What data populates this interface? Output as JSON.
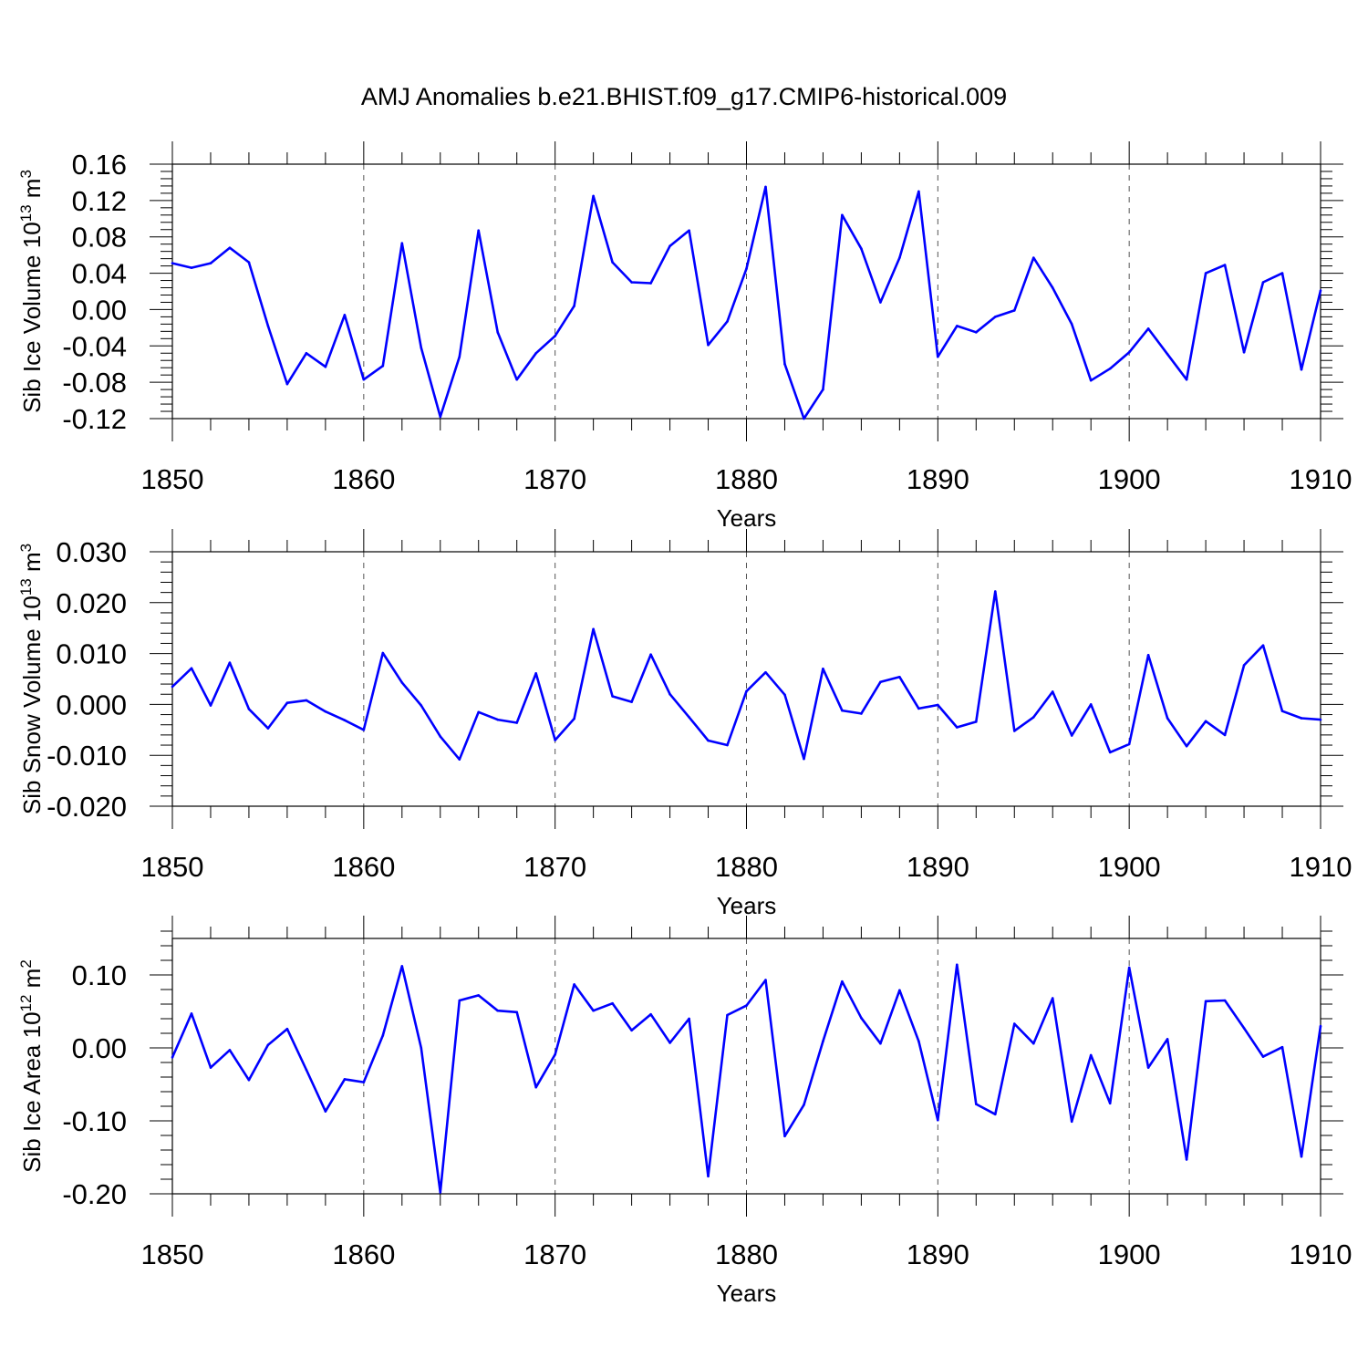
{
  "title": "AMJ Anomalies b.e21.BHIST.f09_g17.CMIP6-historical.009",
  "series_color": "#0000ff",
  "chart_data": [
    {
      "type": "line",
      "name": "ice-volume",
      "ylabel": "Sib Ice Volume 10",
      "ylabel_exp": "13",
      "ylabel_unit": " m",
      "ylabel_unit_exp": "3",
      "xlabel": "Years",
      "xlim": [
        1850,
        1910
      ],
      "ylim": [
        -0.12,
        0.16
      ],
      "yticks": [
        -0.12,
        -0.08,
        -0.04,
        0.0,
        0.04,
        0.08,
        0.12,
        0.16
      ],
      "ytick_labels": [
        "-0.12",
        "-0.08",
        "-0.04",
        "0.00",
        "0.04",
        "0.08",
        "0.12",
        "0.16"
      ],
      "xticks": [
        1850,
        1860,
        1870,
        1880,
        1890,
        1900,
        1910
      ],
      "xtick_labels": [
        "1850",
        "1860",
        "1870",
        "1880",
        "1890",
        "1900",
        "1910"
      ],
      "x_start": 1850,
      "values": [
        0.051,
        0.046,
        0.051,
        0.068,
        0.052,
        -0.018,
        -0.082,
        -0.048,
        -0.063,
        -0.006,
        -0.077,
        -0.062,
        0.073,
        -0.042,
        -0.118,
        -0.052,
        0.087,
        -0.025,
        -0.077,
        -0.048,
        -0.029,
        0.004,
        0.125,
        0.052,
        0.03,
        0.029,
        0.07,
        0.087,
        -0.039,
        -0.013,
        0.045,
        0.135,
        -0.06,
        -0.12,
        -0.088,
        0.104,
        0.067,
        0.008,
        0.057,
        0.13,
        -0.052,
        -0.018,
        -0.025,
        -0.008,
        -0.001,
        0.057,
        0.024,
        -0.016,
        -0.078,
        -0.065,
        -0.047,
        -0.021,
        -0.049,
        -0.077,
        0.04,
        0.049,
        -0.047,
        0.03,
        0.04,
        -0.066,
        0.021
      ]
    },
    {
      "type": "line",
      "name": "snow-volume",
      "ylabel": "Sib Snow Volume 10",
      "ylabel_exp": "13",
      "ylabel_unit": " m",
      "ylabel_unit_exp": "3",
      "xlabel": "Years",
      "xlim": [
        1850,
        1910
      ],
      "ylim": [
        -0.02,
        0.03
      ],
      "yticks": [
        -0.02,
        -0.01,
        0.0,
        0.01,
        0.02,
        0.03
      ],
      "ytick_labels": [
        "-0.020",
        "-0.010",
        "0.000",
        "0.010",
        "0.020",
        "0.030"
      ],
      "xticks": [
        1850,
        1860,
        1870,
        1880,
        1890,
        1900,
        1910
      ],
      "xtick_labels": [
        "1850",
        "1860",
        "1870",
        "1880",
        "1890",
        "1900",
        "1910"
      ],
      "x_start": 1850,
      "values": [
        0.0035,
        0.0071,
        -0.0002,
        0.0082,
        -0.0009,
        -0.0047,
        0.0003,
        0.0008,
        -0.0014,
        -0.0031,
        -0.005,
        0.0101,
        0.0043,
        -0.0002,
        -0.0063,
        -0.0108,
        -0.0015,
        -0.003,
        -0.0036,
        0.0061,
        -0.007,
        -0.0028,
        0.0148,
        0.0016,
        0.0005,
        0.0098,
        0.002,
        -0.0025,
        -0.0071,
        -0.008,
        0.0026,
        0.0063,
        0.0019,
        -0.0107,
        0.007,
        -0.0012,
        -0.0018,
        0.0044,
        0.0054,
        -0.0008,
        -0.0001,
        -0.0045,
        -0.0034,
        0.0222,
        -0.0052,
        -0.0025,
        0.0025,
        -0.0061,
        0.0,
        -0.0094,
        -0.0078,
        0.0097,
        -0.0027,
        -0.0082,
        -0.0033,
        -0.006,
        0.0077,
        0.0116,
        -0.0013,
        -0.0027,
        -0.003
      ]
    },
    {
      "type": "line",
      "name": "ice-area",
      "ylabel": "Sib Ice Area 10",
      "ylabel_exp": "12",
      "ylabel_unit": " m",
      "ylabel_unit_exp": "2",
      "xlabel": "Years",
      "xlim": [
        1850,
        1910
      ],
      "ylim": [
        -0.2,
        0.15
      ],
      "yticks": [
        -0.2,
        -0.1,
        0.0,
        0.1
      ],
      "ytick_labels": [
        "-0.20",
        "-0.10",
        "0.00",
        "0.10"
      ],
      "xticks": [
        1850,
        1860,
        1870,
        1880,
        1890,
        1900,
        1910
      ],
      "xtick_labels": [
        "1850",
        "1860",
        "1870",
        "1880",
        "1890",
        "1900",
        "1910"
      ],
      "x_start": 1850,
      "values": [
        -0.013,
        0.047,
        -0.027,
        -0.003,
        -0.044,
        0.004,
        0.026,
        -0.03,
        -0.087,
        -0.043,
        -0.047,
        0.017,
        0.112,
        0.0,
        -0.198,
        0.065,
        0.072,
        0.051,
        0.049,
        -0.054,
        -0.009,
        0.087,
        0.051,
        0.061,
        0.024,
        0.046,
        0.007,
        0.04,
        -0.176,
        0.045,
        0.058,
        0.093,
        -0.121,
        -0.078,
        0.009,
        0.091,
        0.041,
        0.006,
        0.079,
        0.009,
        -0.099,
        0.114,
        -0.077,
        -0.091,
        0.033,
        0.006,
        0.068,
        -0.101,
        -0.01,
        -0.076,
        0.11,
        -0.027,
        0.012,
        -0.153,
        0.064,
        0.065,
        0.027,
        -0.012,
        0.001,
        -0.149,
        0.03
      ]
    }
  ]
}
